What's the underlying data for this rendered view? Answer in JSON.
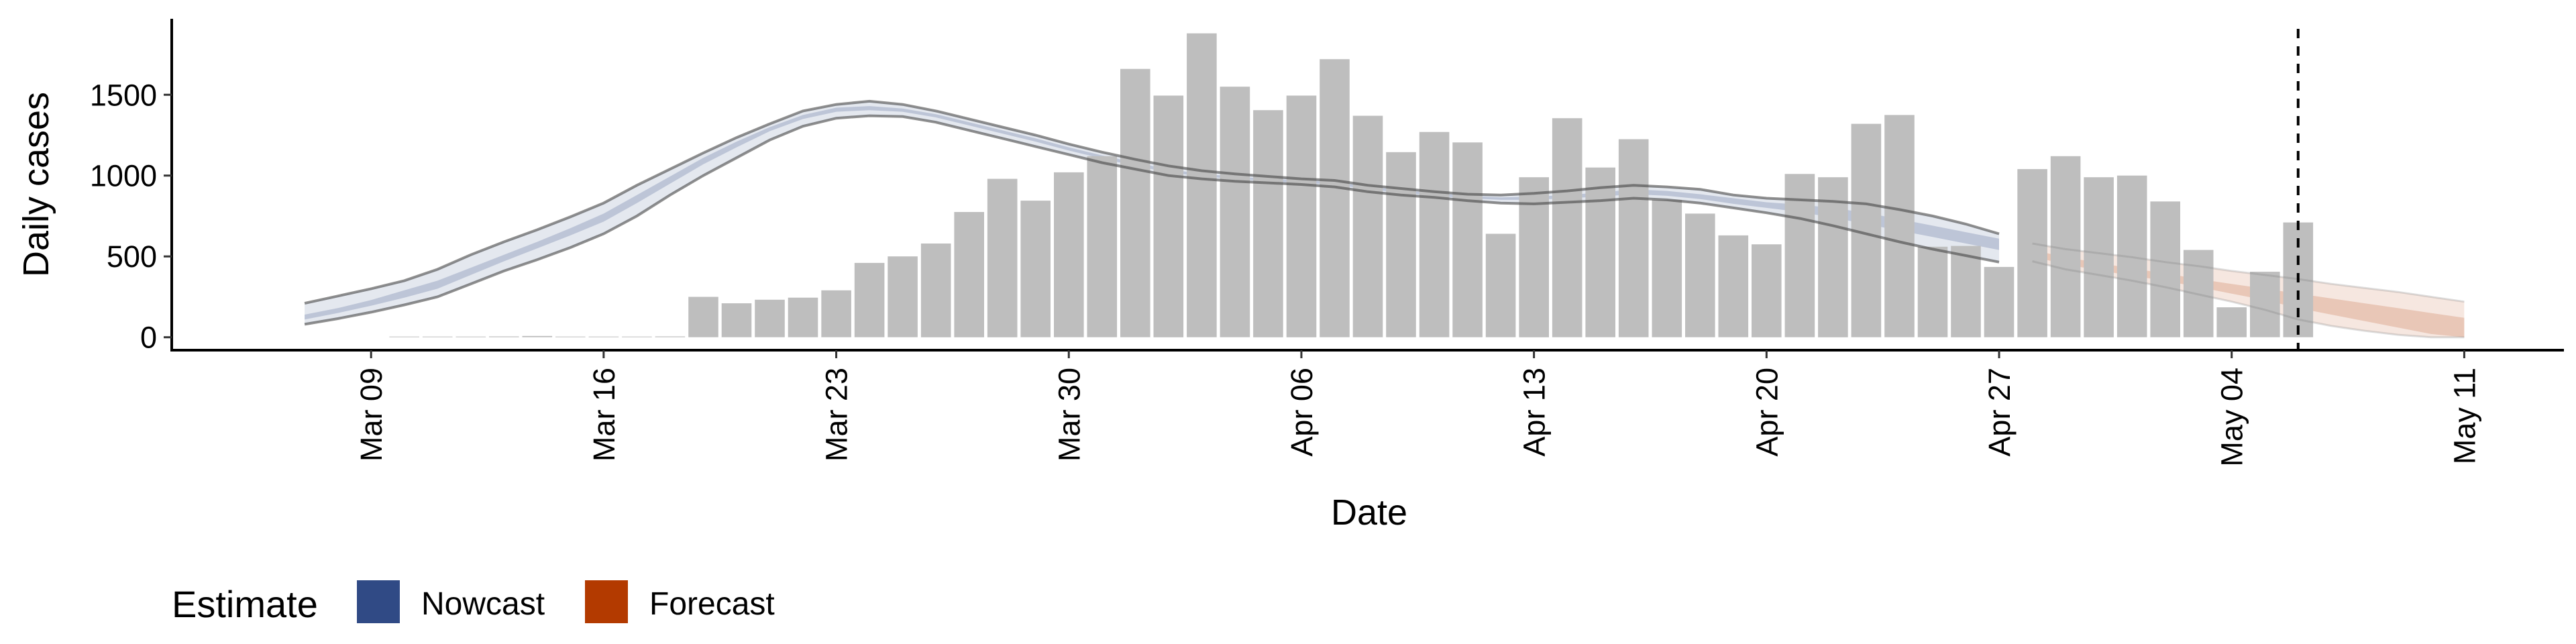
{
  "chart_data": {
    "type": "bar",
    "xlabel": "Date",
    "ylabel": "Daily cases",
    "ylim": [
      -80,
      1970
    ],
    "xlim": [
      "2020-03-03",
      "2020-05-14"
    ],
    "yticks": [
      0,
      500,
      1000,
      1500
    ],
    "xticks": [
      "2020-03-09",
      "2020-03-16",
      "2020-03-23",
      "2020-03-30",
      "2020-04-06",
      "2020-04-13",
      "2020-04-20",
      "2020-04-27",
      "2020-05-04",
      "2020-05-11"
    ],
    "xtick_labels": [
      "Mar 09",
      "Mar 16",
      "Mar 23",
      "Mar 30",
      "Apr 06",
      "Apr 13",
      "Apr 20",
      "Apr 27",
      "May 04",
      "May 11"
    ],
    "vline_date": "2020-05-06",
    "grid": false,
    "legend": {
      "title": "Estimate",
      "position": "bottom-left",
      "items": [
        {
          "label": "Nowcast",
          "color": "#304A85"
        },
        {
          "label": "Forecast",
          "color": "#B33A00"
        }
      ]
    },
    "bars": {
      "color": "#BEBEBE",
      "dates": [
        "2020-03-10",
        "2020-03-11",
        "2020-03-12",
        "2020-03-13",
        "2020-03-14",
        "2020-03-15",
        "2020-03-16",
        "2020-03-17",
        "2020-03-18",
        "2020-03-19",
        "2020-03-20",
        "2020-03-21",
        "2020-03-22",
        "2020-03-23",
        "2020-03-24",
        "2020-03-25",
        "2020-03-26",
        "2020-03-27",
        "2020-03-28",
        "2020-03-29",
        "2020-03-30",
        "2020-03-31",
        "2020-04-01",
        "2020-04-02",
        "2020-04-03",
        "2020-04-04",
        "2020-04-05",
        "2020-04-06",
        "2020-04-07",
        "2020-04-08",
        "2020-04-09",
        "2020-04-10",
        "2020-04-11",
        "2020-04-12",
        "2020-04-13",
        "2020-04-14",
        "2020-04-15",
        "2020-04-16",
        "2020-04-17",
        "2020-04-18",
        "2020-04-19",
        "2020-04-20",
        "2020-04-21",
        "2020-04-22",
        "2020-04-23",
        "2020-04-24",
        "2020-04-25",
        "2020-04-26",
        "2020-04-27",
        "2020-04-28",
        "2020-04-29",
        "2020-04-30",
        "2020-05-01",
        "2020-05-02",
        "2020-05-03",
        "2020-05-04",
        "2020-05-05",
        "2020-05-06"
      ],
      "values": [
        1,
        1,
        1,
        5,
        8,
        0,
        0,
        2,
        5,
        250,
        210,
        232,
        245,
        290,
        460,
        500,
        580,
        775,
        980,
        845,
        1020,
        1120,
        1660,
        1495,
        1880,
        1550,
        1405,
        1495,
        1720,
        1370,
        1145,
        1270,
        1205,
        640,
        990,
        1355,
        1050,
        1225,
        850,
        765,
        630,
        575,
        1010,
        990,
        1320,
        1375,
        560,
        565,
        435,
        1040,
        1120,
        990,
        1000,
        840,
        540,
        185,
        405,
        710
      ]
    },
    "nowcast": {
      "name": "Nowcast",
      "color": "#304A85",
      "dates": [
        "2020-03-07",
        "2020-03-08",
        "2020-03-09",
        "2020-03-10",
        "2020-03-11",
        "2020-03-12",
        "2020-03-13",
        "2020-03-14",
        "2020-03-15",
        "2020-03-16",
        "2020-03-17",
        "2020-03-18",
        "2020-03-19",
        "2020-03-20",
        "2020-03-21",
        "2020-03-22",
        "2020-03-23",
        "2020-03-24",
        "2020-03-25",
        "2020-03-26",
        "2020-03-27",
        "2020-03-28",
        "2020-03-29",
        "2020-03-30",
        "2020-03-31",
        "2020-04-01",
        "2020-04-02",
        "2020-04-03",
        "2020-04-04",
        "2020-04-05",
        "2020-04-06",
        "2020-04-07",
        "2020-04-08",
        "2020-04-09",
        "2020-04-10",
        "2020-04-11",
        "2020-04-12",
        "2020-04-13",
        "2020-04-14",
        "2020-04-15",
        "2020-04-16",
        "2020-04-17",
        "2020-04-18",
        "2020-04-19",
        "2020-04-20",
        "2020-04-21",
        "2020-04-22",
        "2020-04-23",
        "2020-04-24",
        "2020-04-25",
        "2020-04-26",
        "2020-04-27"
      ],
      "lower90": [
        80,
        115,
        155,
        200,
        250,
        330,
        410,
        480,
        555,
        640,
        750,
        880,
        1000,
        1110,
        1220,
        1305,
        1355,
        1370,
        1365,
        1330,
        1280,
        1230,
        1180,
        1130,
        1080,
        1040,
        1000,
        980,
        965,
        955,
        945,
        930,
        900,
        880,
        865,
        845,
        830,
        825,
        835,
        845,
        860,
        850,
        830,
        800,
        770,
        735,
        690,
        640,
        590,
        545,
        505,
        465
      ],
      "lower50": [
        110,
        150,
        195,
        245,
        300,
        385,
        470,
        550,
        630,
        715,
        830,
        950,
        1070,
        1175,
        1275,
        1350,
        1395,
        1405,
        1395,
        1360,
        1310,
        1260,
        1210,
        1155,
        1105,
        1060,
        1020,
        995,
        980,
        965,
        955,
        945,
        915,
        895,
        875,
        860,
        850,
        850,
        860,
        870,
        885,
        875,
        855,
        825,
        800,
        775,
        740,
        700,
        660,
        620,
        580,
        540
      ],
      "upper50": [
        140,
        180,
        230,
        290,
        350,
        430,
        510,
        590,
        675,
        765,
        880,
        995,
        1110,
        1210,
        1300,
        1375,
        1420,
        1430,
        1415,
        1380,
        1330,
        1280,
        1230,
        1175,
        1125,
        1080,
        1040,
        1010,
        995,
        980,
        970,
        960,
        930,
        910,
        890,
        875,
        865,
        870,
        880,
        895,
        915,
        905,
        885,
        860,
        835,
        820,
        800,
        770,
        730,
        690,
        650,
        610
      ],
      "upper90": [
        210,
        255,
        300,
        350,
        420,
        510,
        590,
        665,
        745,
        830,
        940,
        1040,
        1140,
        1235,
        1320,
        1400,
        1440,
        1460,
        1440,
        1400,
        1350,
        1300,
        1250,
        1195,
        1145,
        1100,
        1060,
        1030,
        1010,
        995,
        980,
        970,
        940,
        920,
        900,
        885,
        880,
        890,
        905,
        925,
        940,
        930,
        915,
        880,
        860,
        850,
        840,
        825,
        790,
        750,
        700,
        640
      ]
    },
    "forecast": {
      "name": "Forecast",
      "color": "#B33A00",
      "dates": [
        "2020-04-28",
        "2020-04-29",
        "2020-04-30",
        "2020-05-01",
        "2020-05-02",
        "2020-05-03",
        "2020-05-04",
        "2020-05-05",
        "2020-05-06",
        "2020-05-07",
        "2020-05-08",
        "2020-05-09",
        "2020-05-10",
        "2020-05-11"
      ],
      "lower90": [
        470,
        420,
        385,
        350,
        310,
        265,
        220,
        170,
        110,
        70,
        40,
        15,
        0,
        0
      ],
      "lower50": [
        500,
        450,
        415,
        380,
        350,
        310,
        270,
        230,
        180,
        140,
        100,
        60,
        20,
        0
      ],
      "upper50": [
        540,
        495,
        460,
        425,
        395,
        360,
        330,
        300,
        270,
        240,
        210,
        180,
        150,
        120
      ],
      "upper90": [
        580,
        545,
        520,
        495,
        465,
        440,
        410,
        385,
        360,
        330,
        305,
        280,
        250,
        220
      ]
    }
  }
}
